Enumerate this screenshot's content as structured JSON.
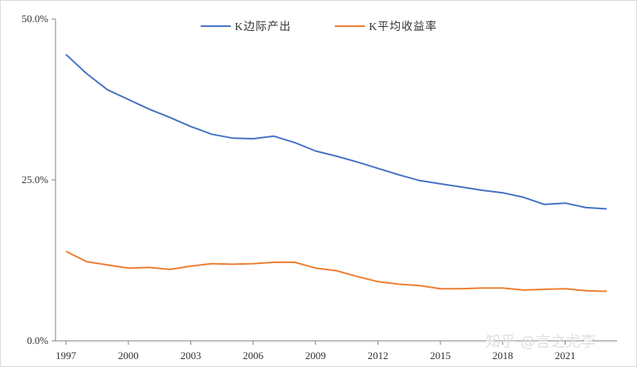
{
  "chart_data": {
    "type": "line",
    "title": "",
    "xlabel": "",
    "ylabel": "",
    "ylim": [
      0,
      50
    ],
    "y_ticks": [
      "0.0%",
      "25.0%",
      "50.0%"
    ],
    "y_tick_values": [
      0,
      25,
      50
    ],
    "x_tick_labels": [
      "1997",
      "2000",
      "2003",
      "2006",
      "2009",
      "2012",
      "2015",
      "2018",
      "2021"
    ],
    "x_tick_values": [
      1997,
      2000,
      2003,
      2006,
      2009,
      2012,
      2015,
      2018,
      2021
    ],
    "grid": false,
    "legend_position": "top-center",
    "x": [
      1997,
      1998,
      1999,
      2000,
      2001,
      2002,
      2003,
      2004,
      2005,
      2006,
      2007,
      2008,
      2009,
      2010,
      2011,
      2012,
      2013,
      2014,
      2015,
      2016,
      2017,
      2018,
      2019,
      2020,
      2021,
      2022,
      2023
    ],
    "series": [
      {
        "name": "K边际产出",
        "color": "#4472c4",
        "values": [
          44.5,
          41.5,
          39.0,
          37.5,
          36.0,
          34.7,
          33.3,
          32.1,
          31.5,
          31.4,
          31.8,
          30.8,
          29.5,
          28.7,
          27.8,
          26.8,
          25.8,
          24.9,
          24.4,
          23.9,
          23.4,
          23.0,
          22.3,
          21.2,
          21.4,
          20.7,
          20.5
        ]
      },
      {
        "name": "K平均收益率",
        "color": "#ed7d31",
        "values": [
          13.9,
          12.3,
          11.8,
          11.3,
          11.4,
          11.1,
          11.6,
          12.0,
          11.9,
          12.0,
          12.2,
          12.2,
          11.3,
          10.9,
          10.0,
          9.2,
          8.8,
          8.6,
          8.1,
          8.1,
          8.2,
          8.2,
          7.9,
          8.0,
          8.1,
          7.8,
          7.7
        ]
      }
    ]
  },
  "watermark": "知乎 @言之尤李"
}
